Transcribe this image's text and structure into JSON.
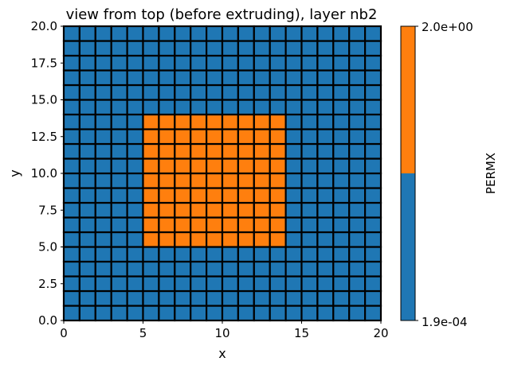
{
  "chart_data": {
    "type": "heatmap",
    "title": "view from top (before extruding), layer nb2",
    "xlabel": "x",
    "ylabel": "y",
    "xlim": [
      0,
      20
    ],
    "ylim": [
      0,
      20
    ],
    "xticks": [
      0,
      5,
      10,
      15,
      20
    ],
    "xtick_labels": [
      "0",
      "5",
      "10",
      "15",
      "20"
    ],
    "yticks": [
      0,
      2.5,
      5,
      7.5,
      10,
      12.5,
      15,
      17.5,
      20
    ],
    "ytick_labels": [
      "0.0",
      "2.5",
      "5.0",
      "7.5",
      "10.0",
      "12.5",
      "15.0",
      "17.5",
      "20.0"
    ],
    "grid": {
      "nx": 20,
      "ny": 20,
      "cell_size": 1,
      "cell_edge_color": "#000000",
      "background_value": 0.00019,
      "block": {
        "x_range": [
          5,
          14
        ],
        "y_range": [
          5,
          14
        ],
        "value": 2.0
      }
    },
    "colorbar": {
      "label": "PERMX",
      "min_label": "1.9e-04",
      "max_label": "2.0e+00",
      "min": 0.00019,
      "max": 2.0,
      "colors": [
        "#1f77b4",
        "#ff7f0e"
      ]
    }
  }
}
